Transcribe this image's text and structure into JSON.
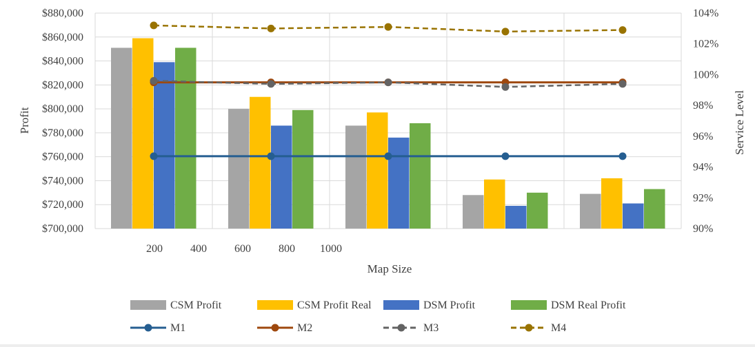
{
  "chart_data": {
    "type": "bar",
    "xlabel": "Map Size",
    "ylabel": "Profit",
    "y2label": "Service  Level",
    "categories": [
      "200",
      "400",
      "600",
      "800",
      "1000"
    ],
    "ylim": [
      700000,
      880000
    ],
    "yticks": [
      "$700,000",
      "$720,000",
      "$740,000",
      "$760,000",
      "$780,000",
      "$800,000",
      "$820,000",
      "$840,000",
      "$860,000",
      "$880,000"
    ],
    "y2lim": [
      90,
      104
    ],
    "y2ticks": [
      "90%",
      "92%",
      "94%",
      "96%",
      "98%",
      "100%",
      "102%",
      "104%"
    ],
    "grid": true,
    "legend_position": "bottom",
    "bar_series": [
      {
        "name": "CSM  Profit",
        "color": "#a5a5a5",
        "values": [
          851000,
          800000,
          786000,
          728000,
          729000
        ]
      },
      {
        "name": "CSM  Profit Real",
        "color": "#ffc000",
        "values": [
          859000,
          810000,
          797000,
          741000,
          742000
        ]
      },
      {
        "name": "DSM  Profit",
        "color": "#4472c4",
        "values": [
          839000,
          786000,
          776000,
          719000,
          721000
        ]
      },
      {
        "name": "DSM  Real  Profit",
        "color": "#70ad47",
        "values": [
          851000,
          799000,
          788000,
          730000,
          733000
        ]
      }
    ],
    "line_series": [
      {
        "name": "M1",
        "color": "#255e91",
        "dashed": false,
        "values": [
          94.7,
          94.7,
          94.7,
          94.7,
          94.7
        ]
      },
      {
        "name": "M2",
        "color": "#9e480e",
        "dashed": false,
        "values": [
          99.5,
          99.5,
          99.5,
          99.5,
          99.5
        ]
      },
      {
        "name": "M3",
        "color": "#636363",
        "dashed": true,
        "values": [
          99.6,
          99.4,
          99.5,
          99.2,
          99.4
        ]
      },
      {
        "name": "M4",
        "color": "#997300",
        "dashed": true,
        "values": [
          103.2,
          103.0,
          103.1,
          102.8,
          102.9
        ]
      }
    ]
  }
}
